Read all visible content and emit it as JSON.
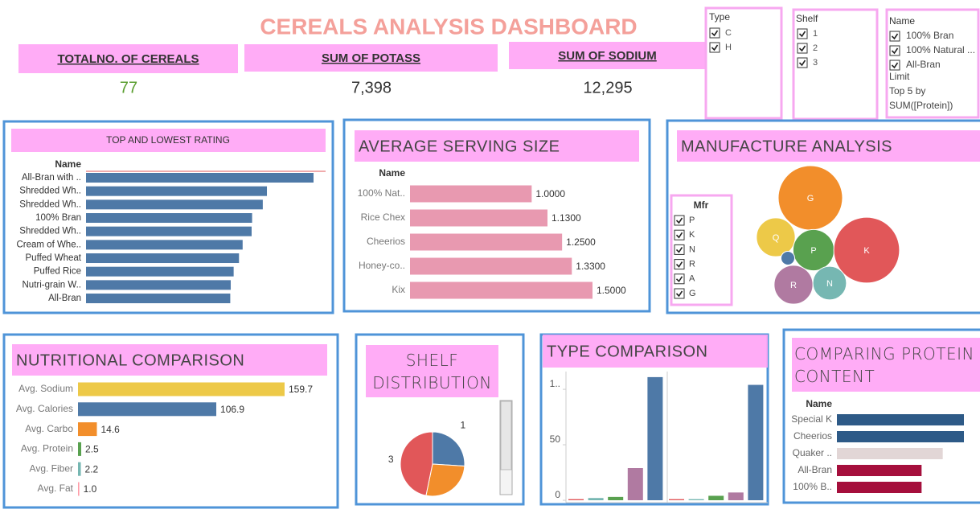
{
  "title": "CEREALS ANALYSIS DASHBOARD",
  "kpis": [
    {
      "label": "TOTALNO. OF CEREALS",
      "value": "77"
    },
    {
      "label": "SUM OF POTASS",
      "value": "7,398"
    },
    {
      "label": "SUM OF SODIUM",
      "value": "12,295"
    }
  ],
  "filters": {
    "type": {
      "title": "Type",
      "options": [
        "C",
        "H"
      ]
    },
    "shelf": {
      "title": "Shelf",
      "options": [
        "1",
        "2",
        "3"
      ]
    },
    "name": {
      "title": "Name",
      "options": [
        "100% Bran",
        "100% Natural ...",
        "All-Bran"
      ],
      "limit": [
        "Limit",
        "Top 5 by",
        "SUM([Protein])"
      ]
    }
  },
  "chart_data": [
    {
      "type": "hbar",
      "title": "TOP AND LOWEST RATING",
      "axis_label": "Name",
      "categories": [
        "All-Bran with ..",
        "Shredded Wh..",
        "Shredded Wh..",
        "100% Bran",
        "Shredded Wh..",
        "Cream of Whe..",
        "Puffed Wheat",
        "Puffed Rice",
        "Nutri-grain W..",
        "All-Bran"
      ],
      "values": [
        93.7,
        74.5,
        72.8,
        68.4,
        68.2,
        64.5,
        63.0,
        60.8,
        59.6,
        59.4
      ],
      "color": "#4e79a7"
    },
    {
      "type": "hbar",
      "title": "AVERAGE SERVING SIZE",
      "axis_label": "Name",
      "categories": [
        "100% Nat..",
        "Rice Chex",
        "Cheerios",
        "Honey-co..",
        "Kix"
      ],
      "values": [
        1,
        1.13,
        1.25,
        1.33,
        1.5
      ],
      "value_labels": [
        "1.0000",
        "1.1300",
        "1.2500",
        "1.3300",
        "1.5000"
      ],
      "color": "#e899b0"
    },
    {
      "type": "bubble",
      "title": "MANUFACTURE ANALYSIS",
      "categories": [
        "G",
        "Q",
        "P",
        "K",
        "R",
        "N",
        null
      ],
      "values": [
        22,
        8,
        9,
        23,
        8,
        6,
        1
      ],
      "colors": [
        "#f28e2b",
        "#edc948",
        "#59a14f",
        "#e15759",
        "#b07aa1",
        "#76b7b2",
        "#4e79a7"
      ],
      "filter": {
        "title": "Mfr",
        "options": [
          "P",
          "K",
          "N",
          "R",
          "A",
          "G"
        ]
      }
    },
    {
      "type": "hbar",
      "title": "NUTRITIONAL COMPARISON",
      "categories": [
        "Avg. Sodium",
        "Avg. Calories",
        "Avg. Carbo",
        "Avg. Protein",
        "Avg. Fiber",
        "Avg. Fat"
      ],
      "values": [
        159.7,
        106.9,
        14.6,
        2.5,
        2.2,
        1
      ],
      "value_labels": [
        "159.7",
        "106.9",
        "14.6",
        "2.5",
        "2.2",
        "1.0"
      ],
      "colors": [
        "#edc948",
        "#4e79a7",
        "#f28e2b",
        "#59a14f",
        "#76b7b2",
        "#ff9da7"
      ]
    },
    {
      "type": "pie",
      "title": "SHELF DISTRIBUTION",
      "categories": [
        "1",
        null,
        "3"
      ],
      "values": [
        20,
        21,
        36
      ],
      "colors": [
        "#4e79a7",
        "#f28e2b",
        "#e15759"
      ]
    },
    {
      "type": "grouped_columns",
      "title": "TYPE COMPARISON",
      "ylim": [
        0,
        116
      ],
      "yticks": [
        0,
        50,
        {
          "value": 100,
          "label": "1.."
        }
      ],
      "colors": [
        "#e15759",
        "#76b7b2",
        "#59a14f",
        "#b07aa1",
        "#4e79a7"
      ],
      "groups": [
        [
          1,
          2,
          3,
          29,
          111
        ],
        [
          1,
          1,
          4,
          7,
          104
        ]
      ]
    },
    {
      "type": "hbar",
      "title": "COMPARING PROTEIN CONTENT",
      "axis_label": "Name",
      "categories": [
        "Special K",
        "Cheerios",
        "Quaker ..",
        "All-Bran",
        "100% B.."
      ],
      "values": [
        6,
        6,
        5,
        4,
        4
      ],
      "colors": [
        "#2e5a87",
        "#2e5a87",
        "#e2d6d6",
        "#a50f3c",
        "#a50f3c"
      ]
    }
  ]
}
